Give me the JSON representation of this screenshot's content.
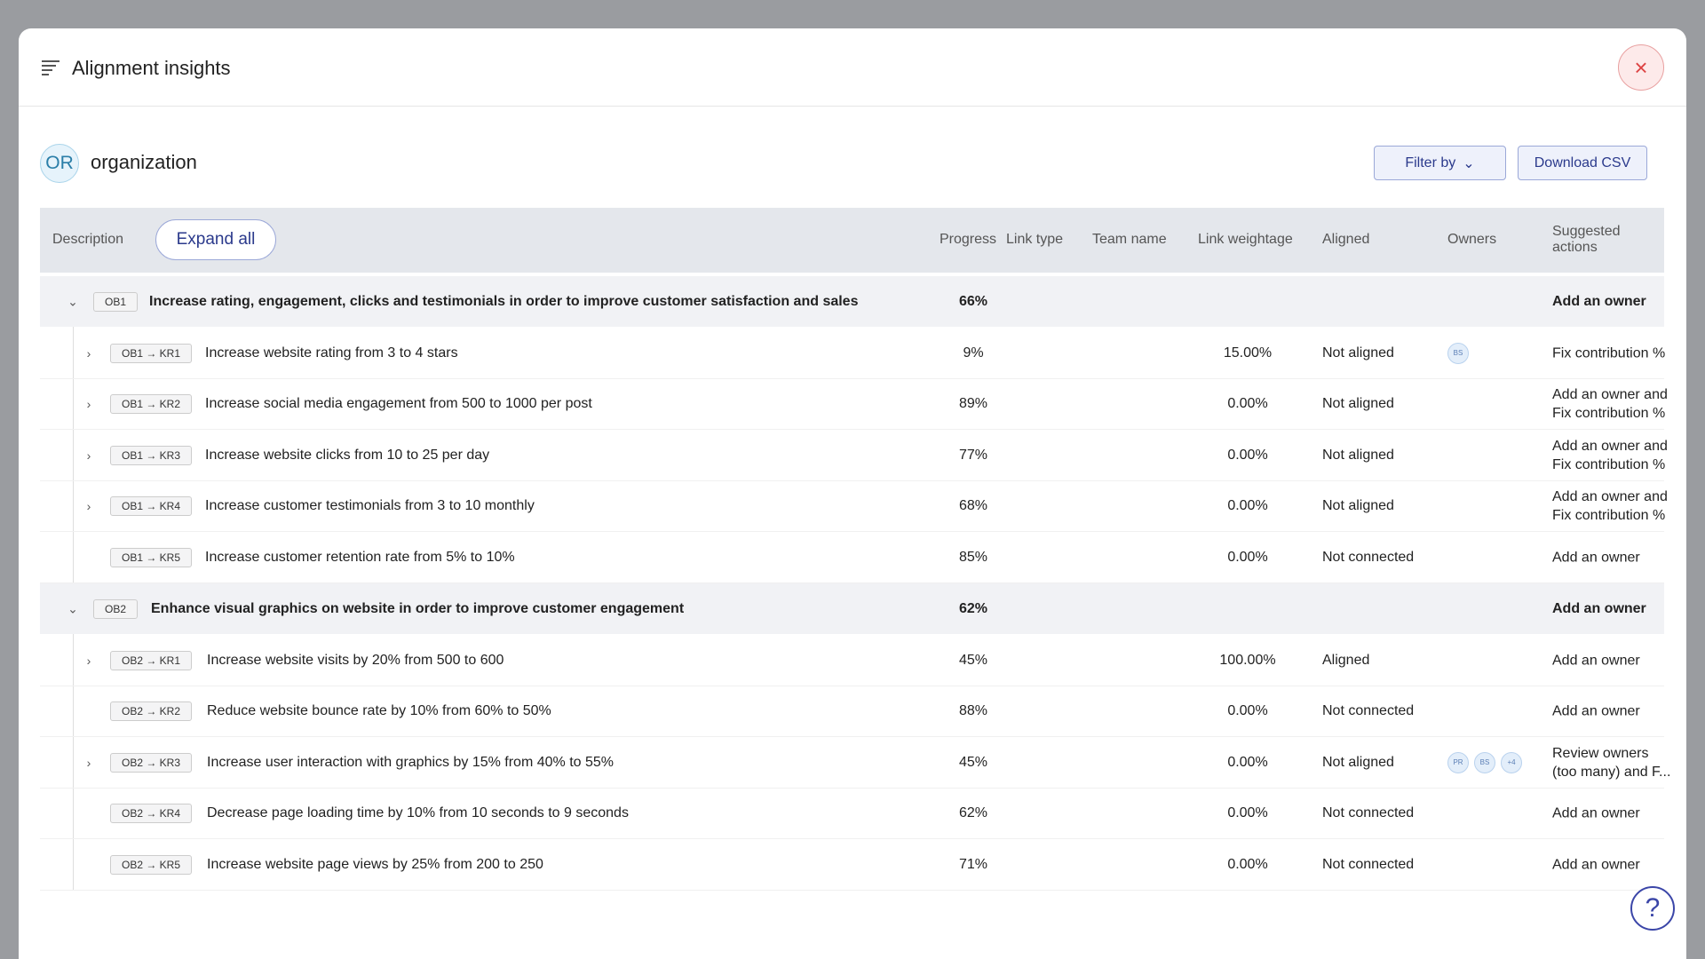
{
  "modal": {
    "title": "Alignment insights",
    "org": {
      "avatar": "OR",
      "name": "organization"
    },
    "buttons": {
      "filter": "Filter by",
      "download": "Download CSV",
      "expand": "Expand all"
    }
  },
  "table": {
    "headers": {
      "description": "Description",
      "progress": "Progress",
      "link_type": "Link type",
      "team_name": "Team name",
      "weightage": "Link weightage",
      "aligned": "Aligned",
      "owners": "Owners",
      "actions": "Suggested actions"
    },
    "groups": [
      {
        "code": "OB1",
        "title": "Increase rating, engagement, clicks and testimonials in order to improve customer satisfaction and sales",
        "progress": "66%",
        "action": "Add an owner",
        "rows": [
          {
            "code": "OB1 → KR1",
            "text": "Increase website rating from 3 to 4 stars",
            "progress": "9%",
            "weightage": "15.00%",
            "aligned": "Not aligned",
            "owners": [
              "BS"
            ],
            "action": "Fix contribution %",
            "expandable": true
          },
          {
            "code": "OB1 → KR2",
            "text": "Increase social media engagement from 500 to 1000 per post",
            "progress": "89%",
            "weightage": "0.00%",
            "aligned": "Not aligned",
            "owners": [],
            "action": "Add an owner and Fix contribution %",
            "expandable": true
          },
          {
            "code": "OB1 → KR3",
            "text": "Increase website clicks from 10 to 25 per day",
            "progress": "77%",
            "weightage": "0.00%",
            "aligned": "Not aligned",
            "owners": [],
            "action": "Add an owner and Fix contribution %",
            "expandable": true
          },
          {
            "code": "OB1 → KR4",
            "text": "Increase customer testimonials from 3 to 10 monthly",
            "progress": "68%",
            "weightage": "0.00%",
            "aligned": "Not aligned",
            "owners": [],
            "action": "Add an owner and Fix contribution %",
            "expandable": true
          },
          {
            "code": "OB1 → KR5",
            "text": "Increase customer retention rate from 5% to 10%",
            "progress": "85%",
            "weightage": "0.00%",
            "aligned": "Not connected",
            "owners": [],
            "action": "Add an owner",
            "expandable": false
          }
        ]
      },
      {
        "code": "OB2",
        "title": "Enhance visual graphics on website in order to improve customer engagement",
        "progress": "62%",
        "action": "Add an owner",
        "rows": [
          {
            "code": "OB2 → KR1",
            "text": "Increase website visits by 20% from 500 to 600",
            "progress": "45%",
            "weightage": "100.00%",
            "aligned": "Aligned",
            "owners": [],
            "action": "Add an owner",
            "expandable": true
          },
          {
            "code": "OB2 → KR2",
            "text": "Reduce website bounce rate by 10% from 60% to 50%",
            "progress": "88%",
            "weightage": "0.00%",
            "aligned": "Not connected",
            "owners": [],
            "action": "Add an owner",
            "expandable": false
          },
          {
            "code": "OB2 → KR3",
            "text": "Increase user interaction with graphics by 15% from 40% to 55%",
            "progress": "45%",
            "weightage": "0.00%",
            "aligned": "Not aligned",
            "owners": [
              "PR",
              "BS",
              "+4"
            ],
            "action": "Review owners (too many) and F...",
            "expandable": true
          },
          {
            "code": "OB2 → KR4",
            "text": "Decrease page loading time by 10% from 10 seconds to 9 seconds",
            "progress": "62%",
            "weightage": "0.00%",
            "aligned": "Not connected",
            "owners": [],
            "action": "Add an owner",
            "expandable": false
          },
          {
            "code": "OB2 → KR5",
            "text": "Increase website page views by 25% from 200 to 250",
            "progress": "71%",
            "weightage": "0.00%",
            "aligned": "Not connected",
            "owners": [],
            "action": "Add an owner",
            "expandable": false
          }
        ]
      }
    ]
  }
}
